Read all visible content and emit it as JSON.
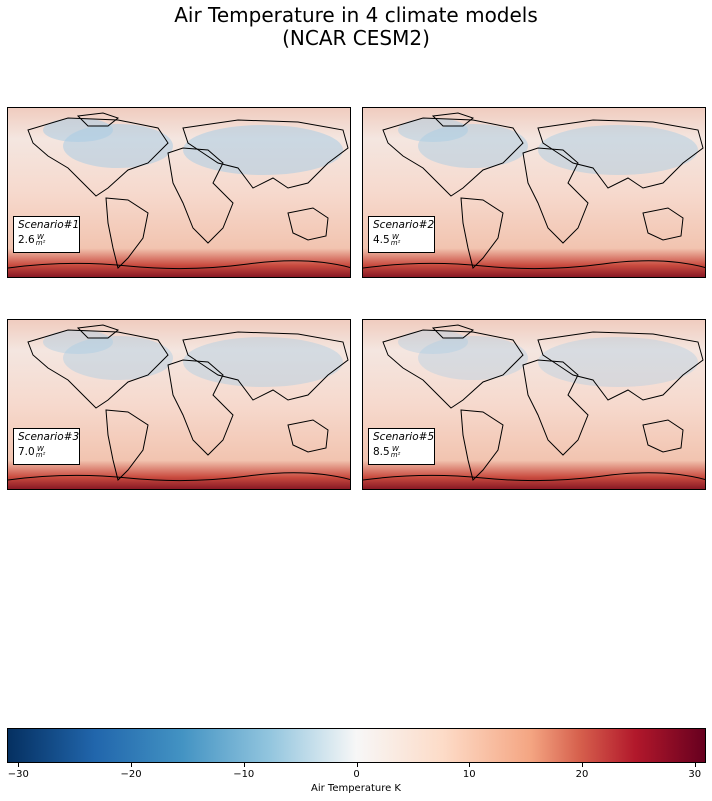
{
  "title_line1": "Air Temperature in 4 climate models",
  "title_line2": "(NCAR CESM2)",
  "chart_data": {
    "type": "heatmap",
    "title": "Air Temperature in 4 climate models (NCAR CESM2)",
    "panels": [
      {
        "scenario": "Scenario#1",
        "value": "2.6",
        "unit_num": "W",
        "unit_den": "m²"
      },
      {
        "scenario": "Scenario#2",
        "value": "4.5",
        "unit_num": "W",
        "unit_den": "m²"
      },
      {
        "scenario": "Scenario#3",
        "value": "7.0",
        "unit_num": "W",
        "unit_den": "m²"
      },
      {
        "scenario": "Scenario#5",
        "value": "8.5",
        "unit_num": "W",
        "unit_den": "m²"
      }
    ],
    "colorbar": {
      "label": "Air Temperature K",
      "range": [
        -31,
        31
      ],
      "ticks": [
        -30,
        -20,
        -10,
        0,
        10,
        20,
        30
      ],
      "tick_labels": [
        "−30",
        "−20",
        "−10",
        "0",
        "10",
        "20",
        "30"
      ],
      "colormap": "RdBu_r"
    }
  }
}
